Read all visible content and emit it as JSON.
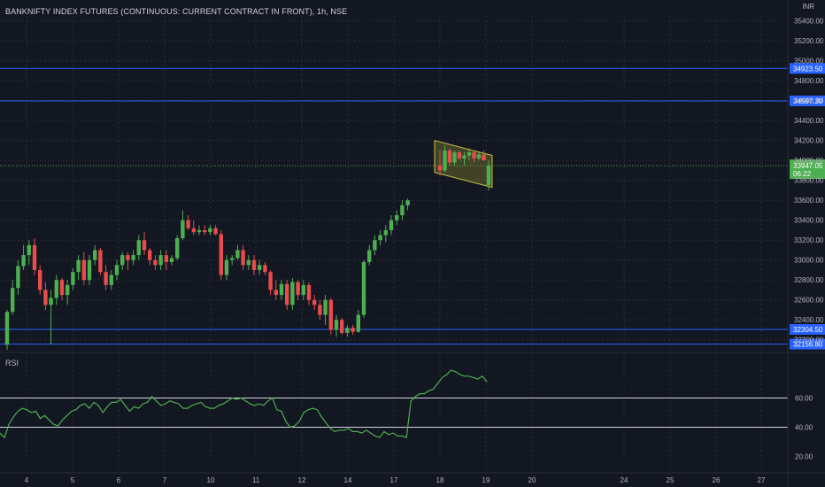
{
  "header": {
    "title": "BANKNIFTY INDEX FUTURES (CONTINUOUS: CURRENT CONTRACT IN FRONT), 1h, NSE"
  },
  "price_axis": {
    "unit": "INR",
    "ticks": [
      "35400.00",
      "35200.00",
      "35000.00",
      "34800.00",
      "34600.00",
      "34400.00",
      "34200.00",
      "34000.00",
      "33800.00",
      "33600.00",
      "33400.00",
      "33200.00",
      "33000.00",
      "32800.00",
      "32600.00",
      "32400.00",
      "32200.00"
    ],
    "tick_values": [
      35400,
      35200,
      35000,
      34800,
      34600,
      34400,
      34200,
      34000,
      33800,
      33600,
      33400,
      33200,
      33000,
      32800,
      32600,
      32400,
      32200
    ]
  },
  "price_levels": [
    {
      "label": "34923.50",
      "value": 34923.5
    },
    {
      "label": "34597.30",
      "value": 34597.3
    },
    {
      "label": "32304.50",
      "value": 32304.5
    },
    {
      "label": "32156.80",
      "value": 32156.8
    }
  ],
  "current_price": {
    "label": "33947.05",
    "countdown": "06:22",
    "value": 33947.05
  },
  "rsi": {
    "label": "RSI",
    "ticks": [
      "60.00",
      "40.00",
      "20.00"
    ],
    "tick_values": [
      60,
      40,
      20
    ],
    "levels": [
      60,
      40
    ]
  },
  "time_axis": {
    "labels": [
      "4",
      "5",
      "6",
      "7",
      "10",
      "11",
      "12",
      "14",
      "17",
      "18",
      "19",
      "20",
      "24",
      "25",
      "26",
      "27"
    ]
  },
  "colors": {
    "background": "#131722",
    "up": "#4caf50",
    "down": "#e84c4c",
    "level_line": "#2962ff",
    "rsi_line": "#4caf50",
    "channel": "#c9c63a",
    "text": "#b2b5be"
  },
  "chart_data": {
    "type": "candlestick",
    "interval": "1h",
    "ylim": [
      32100,
      35450
    ],
    "candles": [
      [
        32150,
        32500,
        32100,
        32480
      ],
      [
        32480,
        32800,
        32450,
        32720
      ],
      [
        32720,
        33000,
        32650,
        32940
      ],
      [
        32940,
        33150,
        32900,
        33050
      ],
      [
        33050,
        33200,
        32950,
        33150
      ],
      [
        33150,
        33220,
        32850,
        32900
      ],
      [
        32900,
        32950,
        32650,
        32700
      ],
      [
        32700,
        32780,
        32500,
        32550
      ],
      [
        32550,
        32700,
        32150,
        32620
      ],
      [
        32620,
        32850,
        32550,
        32800
      ],
      [
        32800,
        32820,
        32600,
        32650
      ],
      [
        32650,
        32800,
        32550,
        32750
      ],
      [
        32750,
        32920,
        32700,
        32880
      ],
      [
        32880,
        33050,
        32800,
        33000
      ],
      [
        33000,
        33080,
        32750,
        32800
      ],
      [
        32800,
        33050,
        32750,
        33000
      ],
      [
        33000,
        33150,
        32950,
        33100
      ],
      [
        33100,
        33120,
        32850,
        32880
      ],
      [
        32880,
        32950,
        32700,
        32750
      ],
      [
        32750,
        32900,
        32700,
        32850
      ],
      [
        32850,
        33000,
        32800,
        32950
      ],
      [
        32950,
        33080,
        32900,
        33050
      ],
      [
        33050,
        33080,
        32900,
        33000
      ],
      [
        33000,
        33100,
        32950,
        33050
      ],
      [
        33050,
        33250,
        33000,
        33200
      ],
      [
        33200,
        33280,
        33050,
        33100
      ],
      [
        33100,
        33120,
        32950,
        33000
      ],
      [
        33000,
        33050,
        32900,
        32950
      ],
      [
        32950,
        33100,
        32900,
        33050
      ],
      [
        33050,
        33100,
        32900,
        32980
      ],
      [
        32980,
        33050,
        32950,
        33020
      ],
      [
        33020,
        33250,
        33000,
        33220
      ],
      [
        33220,
        33500,
        33200,
        33400
      ],
      [
        33400,
        33450,
        33300,
        33320
      ],
      [
        33320,
        33400,
        33250,
        33280
      ],
      [
        33280,
        33350,
        33250,
        33300
      ],
      [
        33300,
        33350,
        33250,
        33280
      ],
      [
        33280,
        33350,
        33250,
        33320
      ],
      [
        33320,
        33350,
        33250,
        33260
      ],
      [
        33260,
        33300,
        32800,
        32850
      ],
      [
        32850,
        33050,
        32800,
        33000
      ],
      [
        33000,
        33050,
        32950,
        33020
      ],
      [
        33020,
        33150,
        33000,
        33100
      ],
      [
        33100,
        33150,
        32900,
        32950
      ],
      [
        32950,
        33050,
        32900,
        33000
      ],
      [
        33000,
        33050,
        32850,
        32900
      ],
      [
        32900,
        33000,
        32850,
        32950
      ],
      [
        32950,
        32980,
        32850,
        32880
      ],
      [
        32880,
        32900,
        32650,
        32700
      ],
      [
        32700,
        32800,
        32600,
        32650
      ],
      [
        32650,
        32800,
        32600,
        32760
      ],
      [
        32760,
        32800,
        32500,
        32550
      ],
      [
        32550,
        32820,
        32500,
        32780
      ],
      [
        32780,
        32800,
        32600,
        32650
      ],
      [
        32650,
        32800,
        32600,
        32750
      ],
      [
        32750,
        32780,
        32550,
        32600
      ],
      [
        32600,
        32650,
        32500,
        32550
      ],
      [
        32550,
        32600,
        32400,
        32450
      ],
      [
        32450,
        32650,
        32350,
        32600
      ],
      [
        32600,
        32620,
        32250,
        32300
      ],
      [
        32300,
        32450,
        32230,
        32400
      ],
      [
        32400,
        32420,
        32250,
        32270
      ],
      [
        32270,
        32350,
        32230,
        32320
      ],
      [
        32320,
        32350,
        32250,
        32280
      ],
      [
        32280,
        32500,
        32270,
        32450
      ],
      [
        32450,
        33000,
        32420,
        32980
      ],
      [
        32980,
        33150,
        32950,
        33100
      ],
      [
        33100,
        33250,
        33050,
        33200
      ],
      [
        33200,
        33300,
        33150,
        33250
      ],
      [
        33250,
        33350,
        33180,
        33300
      ],
      [
        33300,
        33450,
        33250,
        33400
      ],
      [
        33400,
        33500,
        33350,
        33450
      ],
      [
        33450,
        33600,
        33400,
        33550
      ],
      [
        33550,
        33620,
        33500,
        33600
      ],
      [
        33950,
        34100,
        33850,
        33900
      ],
      [
        33900,
        34150,
        33880,
        34100
      ],
      [
        34100,
        34120,
        33950,
        33980
      ],
      [
        33980,
        34100,
        33950,
        34080
      ],
      [
        34080,
        34100,
        34000,
        34020
      ],
      [
        34020,
        34080,
        33950,
        34050
      ],
      [
        34050,
        34120,
        34000,
        34080
      ],
      [
        34080,
        34100,
        33980,
        34020
      ],
      [
        34020,
        34080,
        34000,
        34060
      ],
      [
        34060,
        34100,
        34000,
        34000
      ],
      [
        33750,
        34000,
        33700,
        33947
      ]
    ],
    "rsi_values": [
      36,
      33,
      42,
      47,
      51,
      53,
      52,
      50,
      51,
      46,
      48,
      45,
      42,
      41,
      45,
      48,
      51,
      52,
      55,
      56,
      53,
      57,
      55,
      50,
      54,
      57,
      57,
      59,
      55,
      51,
      54,
      53,
      56,
      57,
      61,
      58,
      55,
      56,
      58,
      57,
      56,
      53,
      53,
      55,
      56,
      57,
      54,
      53,
      53,
      55,
      56,
      58,
      60,
      59,
      60,
      58,
      56,
      55,
      56,
      55,
      58,
      60,
      52,
      51,
      44,
      40,
      41,
      44,
      50,
      52,
      53,
      52,
      47,
      43,
      39,
      37,
      38,
      38,
      39,
      37,
      37,
      36,
      38,
      36,
      34,
      33,
      37,
      35,
      36,
      34,
      34,
      33,
      58,
      61,
      63,
      63,
      65,
      66,
      70,
      74,
      76,
      79,
      78,
      76,
      75,
      75,
      74,
      73,
      75,
      71
    ],
    "level_lines": [
      34923.5,
      34597.3,
      32304.5,
      32156.8
    ],
    "channel": {
      "start_upper": 34200,
      "end_upper": 34050,
      "start_lower": 33880,
      "end_lower": 33730
    }
  }
}
